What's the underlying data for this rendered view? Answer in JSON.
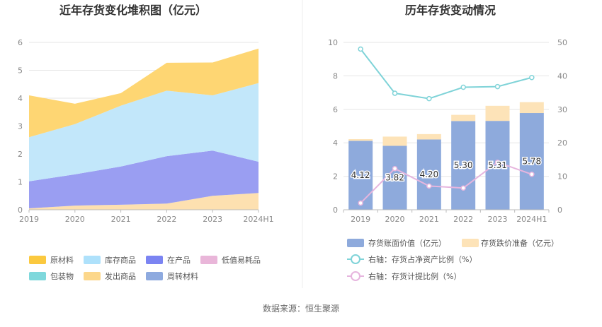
{
  "source": "数据来源：恒生聚源",
  "chart_data": [
    {
      "type": "area",
      "stacked": true,
      "title": "近年存货变化堆积图（亿元）",
      "categories": [
        "2019",
        "2020",
        "2021",
        "2022",
        "2023",
        "2024H1"
      ],
      "ylim": [
        0,
        6
      ],
      "yticks": [
        0,
        1,
        2,
        3,
        4,
        5,
        6
      ],
      "legend_position": "bottom",
      "series": [
        {
          "name": "发出商品",
          "color": "#fde0b0",
          "values": [
            0.05,
            0.15,
            0.18,
            0.22,
            0.5,
            0.6
          ]
        },
        {
          "name": "在产品",
          "color": "#9a9ef2",
          "values": [
            0.97,
            1.12,
            1.37,
            1.7,
            1.62,
            1.12
          ]
        },
        {
          "name": "库存商品",
          "color": "#c2e7fa",
          "values": [
            1.58,
            1.8,
            2.18,
            2.35,
            1.98,
            2.82
          ]
        },
        {
          "name": "原材料",
          "color": "#fed673",
          "values": [
            1.5,
            0.73,
            0.45,
            1.0,
            1.18,
            1.24
          ]
        }
      ],
      "legend": [
        {
          "name": "原材料",
          "color": "#fbc93f"
        },
        {
          "name": "库存商品",
          "color": "#aee1fb"
        },
        {
          "name": "在产品",
          "color": "#7b84f2"
        },
        {
          "name": "低值易耗品",
          "color": "#e9b6d9"
        },
        {
          "name": "包装物",
          "color": "#7fd8dc"
        },
        {
          "name": "发出商品",
          "color": "#fcd78b"
        },
        {
          "name": "周转材料",
          "color": "#8eaadf"
        }
      ]
    },
    {
      "type": "bar",
      "title": "历年存货变动情况",
      "categories": [
        "2019",
        "2020",
        "2021",
        "2022",
        "2023",
        "2024H1"
      ],
      "ylim": [
        0,
        10
      ],
      "yticks": [
        0,
        2,
        4,
        6,
        8,
        10
      ],
      "y2lim": [
        0,
        50
      ],
      "y2ticks": [
        0,
        10,
        20,
        30,
        40,
        50
      ],
      "legend_position": "bottom",
      "series": [
        {
          "name": "存货账面价值（亿元）",
          "type": "bar",
          "color": "#8eaadc",
          "values": [
            4.12,
            3.82,
            4.2,
            5.3,
            5.31,
            5.78
          ],
          "labels": [
            "4.12",
            "3.82",
            "4.20",
            "5.30",
            "5.31",
            "5.78"
          ]
        },
        {
          "name": "存货跌价准备（亿元）",
          "type": "bar",
          "color": "#fde3b8",
          "values": [
            0.1,
            0.55,
            0.32,
            0.37,
            0.9,
            0.65
          ]
        },
        {
          "name": "右轴：存货占净资产比例（%）",
          "type": "line",
          "axis": "right",
          "color": "#7fd3d8",
          "values": [
            48.0,
            34.8,
            33.2,
            36.6,
            36.8,
            39.5
          ]
        },
        {
          "name": "右轴：存货计提比例（%）",
          "type": "line",
          "axis": "right",
          "color": "#e6b5de",
          "values": [
            2.0,
            12.3,
            7.1,
            6.5,
            14.2,
            10.6
          ]
        }
      ]
    }
  ]
}
